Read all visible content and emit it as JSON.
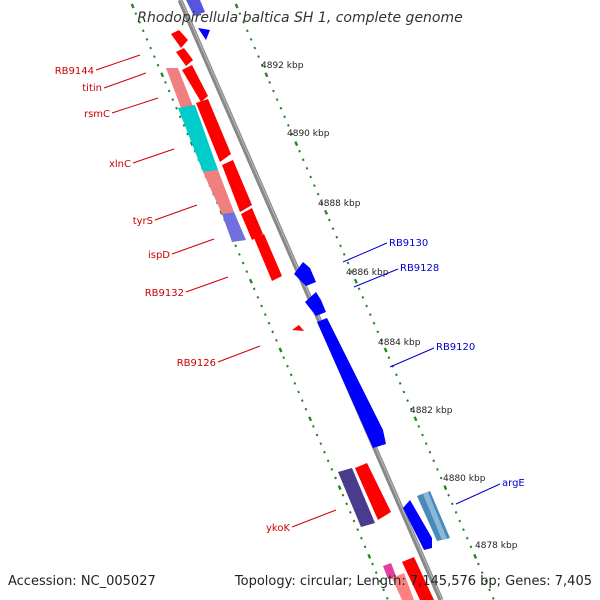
{
  "title": "Rhodopirellula baltica SH 1, complete genome",
  "footer": {
    "accession": "Accession: NC_005027",
    "summary": "Topology: circular; Length: 7,145,576 bp; Genes: 7,405"
  },
  "colors": {
    "forward_red": "#ff0000",
    "reverse_blue": "#0000ff",
    "label_red": "#cc0000",
    "label_blue": "#0000cc",
    "tick_green": "#228822",
    "backbone": "#888888"
  },
  "scale_labels": [
    "4892 kbp",
    "4890 kbp",
    "4888 kbp",
    "4886 kbp",
    "4884 kbp",
    "4882 kbp",
    "4880 kbp",
    "4878 kbp"
  ],
  "left_genes": [
    "RB9144",
    "titin",
    "rsmC",
    "xlnC",
    "tyrS",
    "ispD",
    "RB9132",
    "RB9126",
    "ykoK"
  ],
  "right_genes": [
    "RB9130",
    "RB9128",
    "RB9120",
    "argE"
  ]
}
